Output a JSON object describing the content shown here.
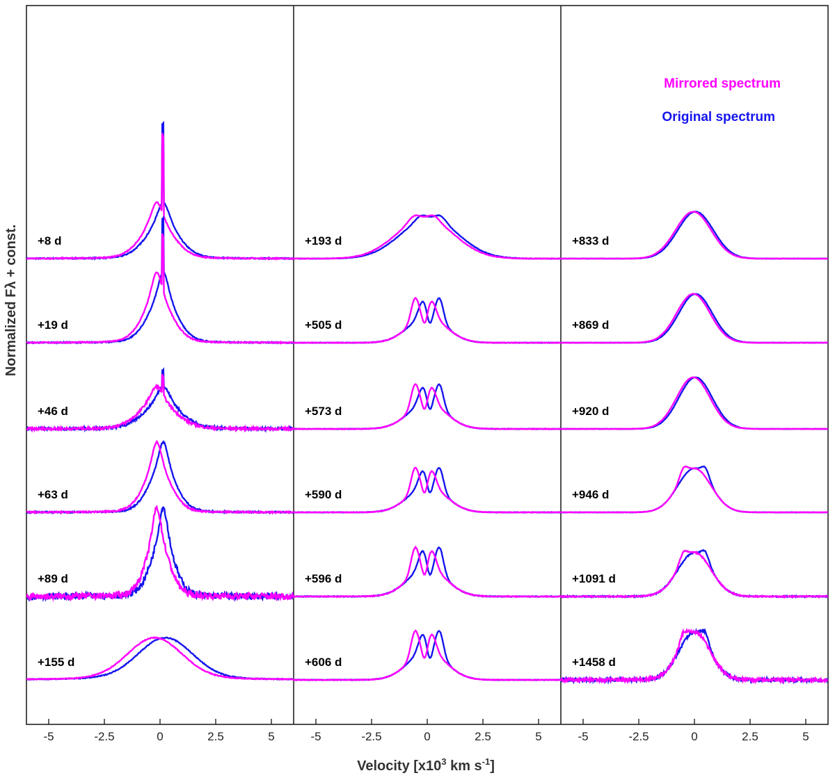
{
  "chart_data": {
    "type": "line",
    "xlabel": "Velocity [x10",
    "xlabel_sup": "3",
    "xlabel_rest": " km s",
    "xlabel_sup2": "-1",
    "xlabel_end": "]",
    "ylabel": "Normalized Fλ + const.",
    "xlim": [
      -6,
      6
    ],
    "xticks": [
      -5,
      -2.5,
      0,
      2.5,
      5
    ],
    "xtick_labels": [
      "-5",
      "-2.5",
      "0",
      "2.5",
      "5"
    ],
    "legend": [
      {
        "name": "Mirrored spectrum",
        "color": "#ff00ff"
      },
      {
        "name": "Original spectrum",
        "color": "#1515ee"
      }
    ],
    "legend_position": "top-right",
    "panels": [
      {
        "spectra": [
          {
            "epoch": "+8 d",
            "profile": "narrow-peak",
            "amp": 0.6,
            "width": 0.85,
            "noise": 0.01,
            "spike": 1.0
          },
          {
            "epoch": "+19 d",
            "profile": "narrow-peak",
            "amp": 0.75,
            "width": 0.75,
            "noise": 0.008,
            "spike": 0.55
          },
          {
            "epoch": "+46 d",
            "profile": "narrow-peak",
            "amp": 0.45,
            "width": 0.95,
            "noise": 0.03,
            "spike": 0.3
          },
          {
            "epoch": "+63 d",
            "profile": "peak",
            "amp": 0.75,
            "width": 0.7,
            "noise": 0.01,
            "spike": 0
          },
          {
            "epoch": "+89 d",
            "profile": "peak",
            "amp": 0.95,
            "width": 0.6,
            "noise": 0.035,
            "spike": 0
          },
          {
            "epoch": "+155 d",
            "profile": "broad",
            "amp": 0.45,
            "width": 1.2,
            "noise": 0.01,
            "spike": 0
          }
        ]
      },
      {
        "spectra": [
          {
            "epoch": "+193 d",
            "profile": "broad-flat",
            "amp": 0.5,
            "width": 1.3,
            "noise": 0.006,
            "spike": 0
          },
          {
            "epoch": "+505 d",
            "profile": "double-horn",
            "amp": 0.5,
            "width": 0.85,
            "noise": 0.006,
            "spike": 0
          },
          {
            "epoch": "+573 d",
            "profile": "double-horn",
            "amp": 0.5,
            "width": 0.85,
            "noise": 0.006,
            "spike": 0
          },
          {
            "epoch": "+590 d",
            "profile": "double-horn",
            "amp": 0.5,
            "width": 0.85,
            "noise": 0.006,
            "spike": 0
          },
          {
            "epoch": "+596 d",
            "profile": "double-horn",
            "amp": 0.55,
            "width": 0.85,
            "noise": 0.008,
            "spike": 0
          },
          {
            "epoch": "+606 d",
            "profile": "double-horn",
            "amp": 0.55,
            "width": 0.85,
            "noise": 0.006,
            "spike": 0
          }
        ]
      },
      {
        "spectra": [
          {
            "epoch": "+833 d",
            "profile": "single",
            "amp": 0.5,
            "width": 0.8,
            "noise": 0.004,
            "spike": 0
          },
          {
            "epoch": "+869 d",
            "profile": "single",
            "amp": 0.52,
            "width": 0.75,
            "noise": 0.004,
            "spike": 0
          },
          {
            "epoch": "+920 d",
            "profile": "single",
            "amp": 0.55,
            "width": 0.75,
            "noise": 0.004,
            "spike": 0
          },
          {
            "epoch": "+946 d",
            "profile": "single-split",
            "amp": 0.55,
            "width": 0.75,
            "noise": 0.004,
            "spike": 0
          },
          {
            "epoch": "+1091 d",
            "profile": "single-split",
            "amp": 0.55,
            "width": 0.75,
            "noise": 0.012,
            "spike": 0
          },
          {
            "epoch": "+1458 d",
            "profile": "single-split",
            "amp": 0.6,
            "width": 0.7,
            "noise": 0.03,
            "spike": 0
          }
        ]
      }
    ]
  }
}
